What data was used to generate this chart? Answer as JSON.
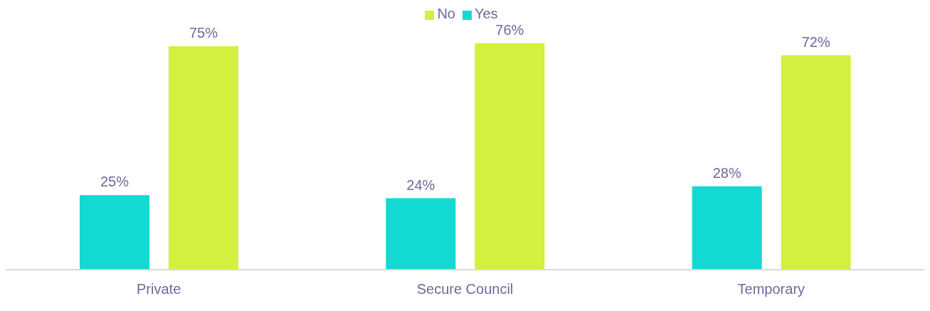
{
  "chart_data": {
    "type": "bar",
    "categories": [
      "Private",
      "Secure Council",
      "Temporary"
    ],
    "series": [
      {
        "name": "Yes",
        "color": "#12d9d2",
        "values": [
          25,
          24,
          28
        ],
        "value_labels": [
          "25%",
          "24%",
          "28%"
        ]
      },
      {
        "name": "No",
        "color": "#d4ef3f",
        "values": [
          75,
          76,
          72
        ],
        "value_labels": [
          "75%",
          "76%",
          "72%"
        ]
      }
    ],
    "legend": "top",
    "grid": false
  }
}
